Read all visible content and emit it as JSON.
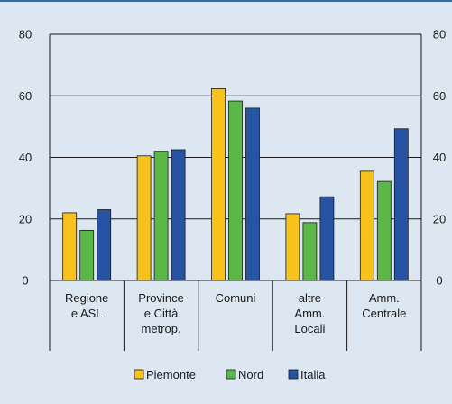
{
  "chart_data": {
    "type": "bar",
    "title": "",
    "categories": [
      [
        "Regione",
        "e ASL"
      ],
      [
        "Province",
        "e Città",
        "metrop."
      ],
      [
        "Comuni"
      ],
      [
        "altre",
        "Amm.",
        "Locali"
      ],
      [
        "Amm.",
        "Centrale"
      ]
    ],
    "series": [
      {
        "name": "Piemonte",
        "color": "#f8c21c",
        "values": [
          22,
          40.5,
          62.3,
          21.7,
          35.5
        ]
      },
      {
        "name": "Nord",
        "color": "#5cb749",
        "values": [
          16.3,
          42,
          58.3,
          18.8,
          32.2
        ]
      },
      {
        "name": "Italia",
        "color": "#2653a3",
        "values": [
          23,
          42.5,
          56,
          27.2,
          49.3
        ]
      }
    ],
    "ylim": [
      0,
      80
    ],
    "yticks": [
      0,
      20,
      40,
      60,
      80
    ],
    "grid": true,
    "legend_position": "bottom-center",
    "colors": {
      "background": "#dde7f2",
      "top_rule": "#2a6fb0",
      "axis": "#1a1a1a",
      "grid": "#1a1a1a"
    }
  }
}
